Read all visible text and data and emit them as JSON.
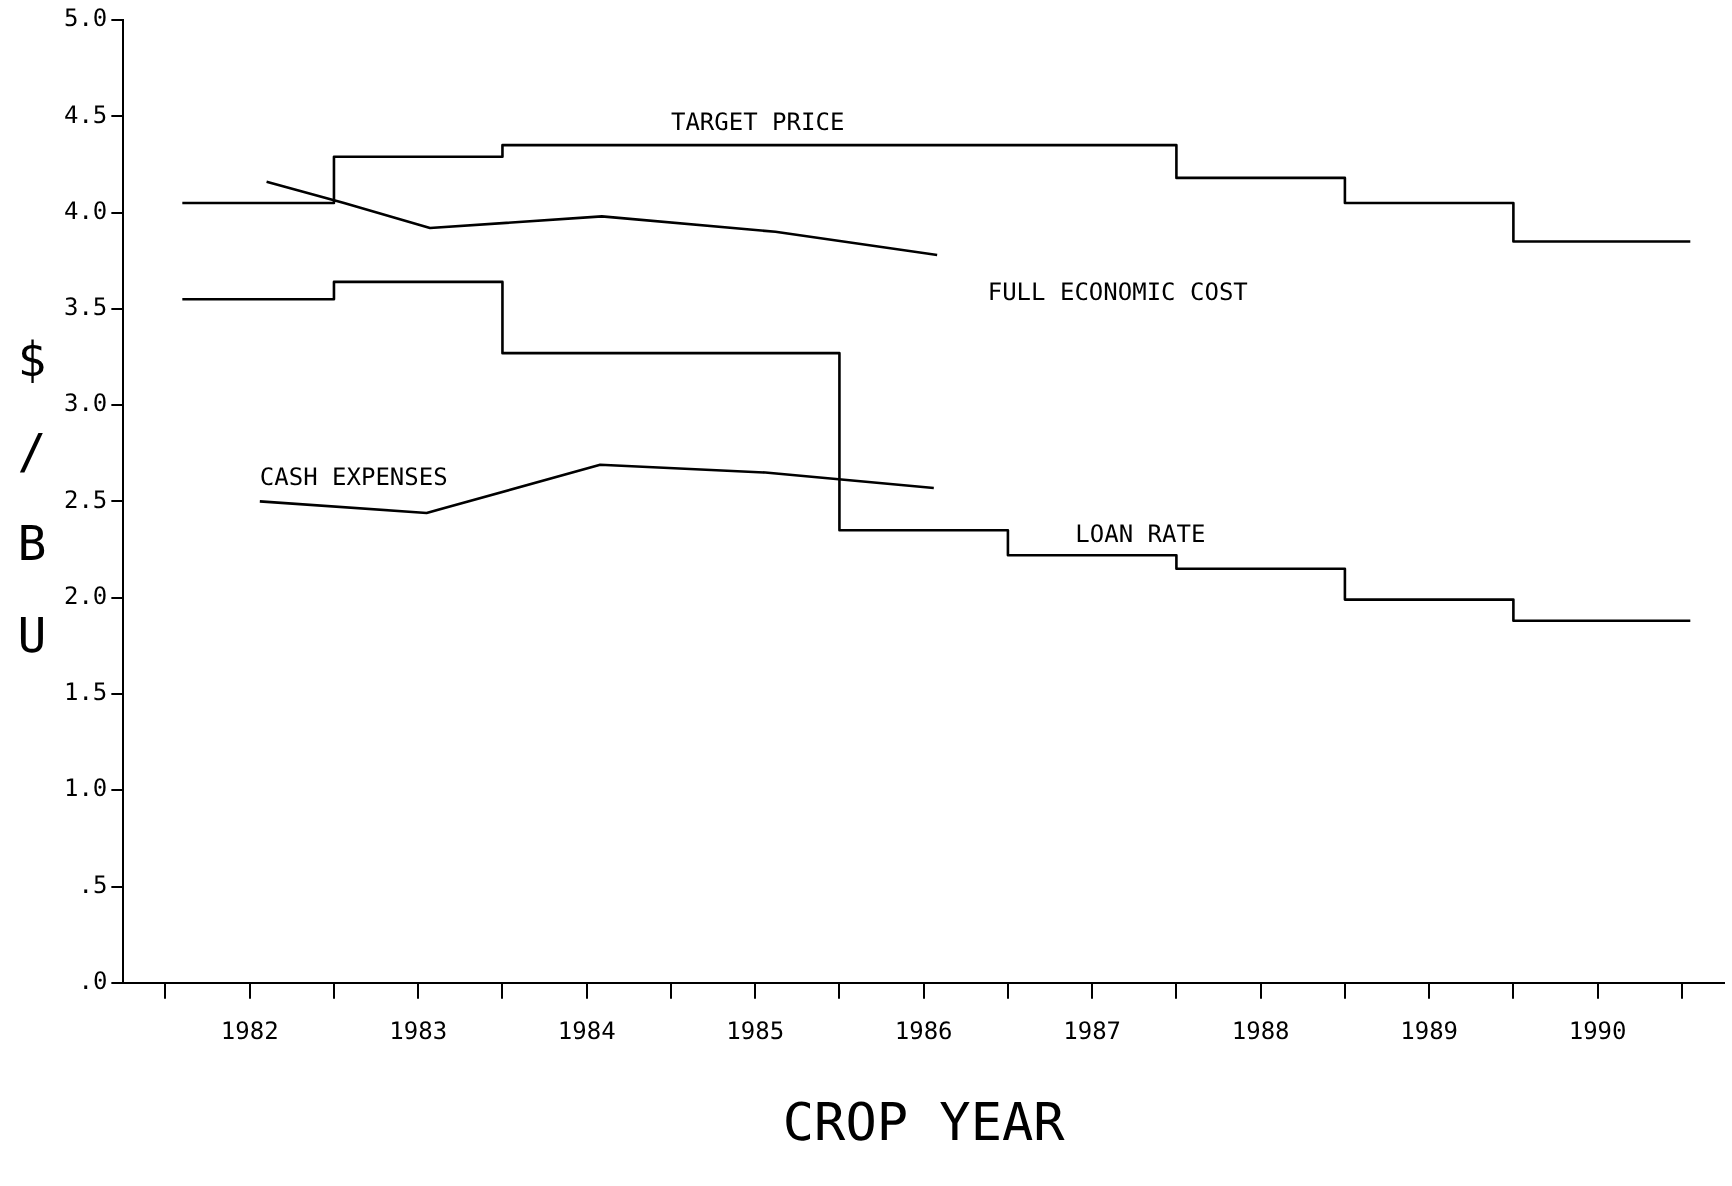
{
  "chart_data": {
    "type": "step",
    "xlabel": "CROP YEAR",
    "ylabel": "$/BU",
    "xlim": [
      1981.25,
      1990.75
    ],
    "ylim": [
      0,
      5
    ],
    "xticks": [
      {
        "value": 1981.5,
        "label": null
      },
      1982,
      {
        "value": 1982.5,
        "label": null
      },
      1983,
      {
        "value": 1983.5,
        "label": null
      },
      1984,
      {
        "value": 1984.5,
        "label": null
      },
      1985,
      {
        "value": 1985.5,
        "label": null
      },
      1986,
      {
        "value": 1986.5,
        "label": null
      },
      1987,
      {
        "value": 1987.5,
        "label": null
      },
      1988,
      {
        "value": 1988.5,
        "label": null
      },
      1989,
      {
        "value": 1989.5,
        "label": null
      },
      1990,
      {
        "value": 1990.5,
        "label": null
      }
    ],
    "yticks": [
      {
        "value": 0,
        "label": ".0"
      },
      {
        "value": 0.5,
        "label": ".5"
      },
      {
        "value": 1,
        "label": "1.0"
      },
      {
        "value": 1.5,
        "label": "1.5"
      },
      {
        "value": 2,
        "label": "2.0"
      },
      {
        "value": 2.5,
        "label": "2.5"
      },
      {
        "value": 3,
        "label": "3.0"
      },
      {
        "value": 3.5,
        "label": "3.5"
      },
      {
        "value": 4,
        "label": "4.0"
      },
      {
        "value": 4.5,
        "label": "4.5"
      },
      {
        "value": 5,
        "label": "5.0"
      }
    ],
    "grid": false,
    "legend": false,
    "marker": "none",
    "line_style": "solid",
    "series": [
      {
        "name": "TARGET PRICE",
        "color": "#000000",
        "x": [
          1981.6,
          1982.5,
          1983.5,
          1987.5,
          1988.5,
          1989.5,
          1990.55
        ],
        "values": [
          4.05,
          4.29,
          4.35,
          4.18,
          4.05,
          3.85,
          3.85
        ]
      },
      {
        "name": "FULL ECONOMIC COST",
        "type": "line",
        "color": "#000000",
        "x": [
          1982.1,
          1982.56,
          1983.07,
          1984.09,
          1985.12,
          1986.08
        ],
        "values": [
          4.16,
          4.05,
          3.92,
          3.98,
          3.9,
          3.78
        ]
      },
      {
        "name": "CASH EXPENSES",
        "type": "line",
        "color": "#000000",
        "x": [
          1982.06,
          1983.05,
          1984.08,
          1985.06,
          1986.06
        ],
        "values": [
          2.5,
          2.44,
          2.69,
          2.65,
          2.57
        ]
      },
      {
        "name": "LOAN RATE",
        "color": "#000000",
        "x": [
          1981.6,
          1982.5,
          1983.5,
          1985.5,
          1986.5,
          1987.5,
          1988.5,
          1989.5,
          1990.55
        ],
        "values": [
          3.55,
          3.64,
          3.27,
          2.35,
          2.22,
          2.15,
          1.99,
          1.88,
          1.88
        ]
      }
    ]
  }
}
